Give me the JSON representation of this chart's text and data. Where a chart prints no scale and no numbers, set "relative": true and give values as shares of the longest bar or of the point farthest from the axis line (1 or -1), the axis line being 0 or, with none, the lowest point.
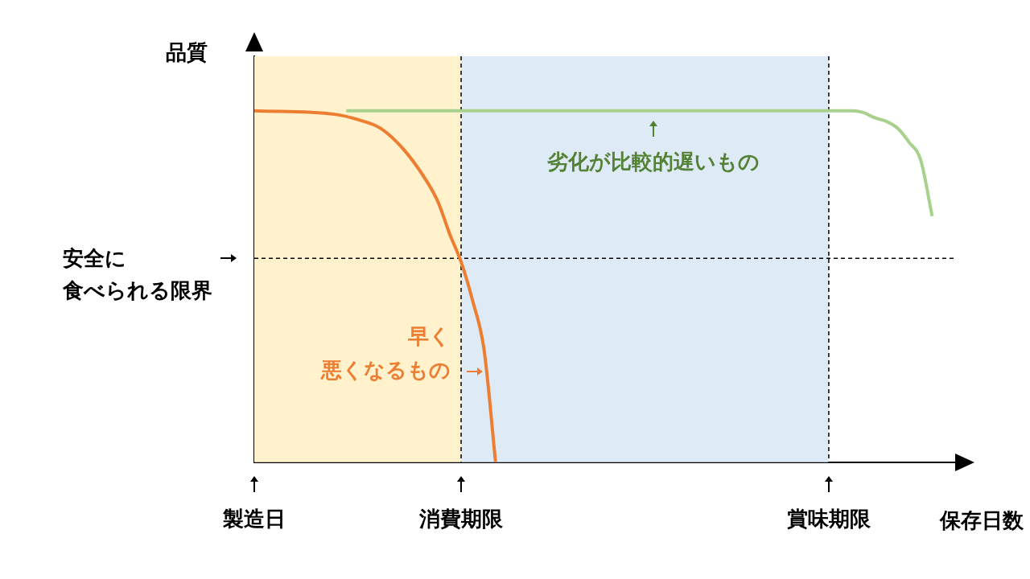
{
  "chart_data": {
    "type": "line",
    "relative": true,
    "xlabel": "保存日数",
    "ylabel": "品質",
    "categories": [
      "製造日",
      null,
      null,
      null,
      null,
      null,
      null,
      null,
      null,
      null,
      null,
      null,
      null,
      null,
      null,
      null,
      null,
      null,
      "消費期限",
      null,
      null,
      null,
      null,
      null,
      null,
      null,
      null,
      null,
      null,
      null,
      null,
      null,
      null,
      null,
      null,
      null,
      null,
      null,
      null,
      null,
      null,
      null,
      null,
      null,
      null,
      null,
      null,
      null,
      null,
      null,
      "賞味期限",
      null,
      null,
      null,
      null,
      null,
      null,
      null,
      null,
      null,
      null,
      null
    ],
    "tick_labels": "x",
    "marker": "none",
    "line_style": "solid",
    "series": [
      {
        "name": "早く悪くなるもの",
        "color": "#ed7d31",
        "values": [
          1,
          null,
          null,
          null,
          null,
          null,
          null,
          0.99,
          null,
          0.975,
          null,
          0.95,
          null,
          0.89,
          null,
          0.8,
          0.74,
          0.65,
          0.57,
          0.46,
          0.32,
          0,
          null,
          null,
          null,
          null,
          null,
          null,
          null,
          null,
          null,
          null,
          null,
          null,
          null,
          null,
          null,
          null,
          null,
          null,
          null,
          null,
          null,
          null,
          null,
          null,
          null,
          null,
          null,
          null,
          null,
          null,
          null,
          null,
          null,
          null,
          null,
          null,
          null,
          null,
          null,
          null
        ]
      },
      {
        "name": "劣化が比較的遅いもの",
        "color": "#a9d18e",
        "values": [
          null,
          null,
          null,
          null,
          null,
          null,
          null,
          null,
          1,
          null,
          null,
          null,
          null,
          null,
          null,
          null,
          null,
          null,
          null,
          null,
          null,
          null,
          null,
          null,
          null,
          null,
          null,
          null,
          null,
          null,
          null,
          null,
          null,
          null,
          null,
          null,
          null,
          null,
          null,
          null,
          null,
          null,
          null,
          null,
          null,
          null,
          null,
          null,
          null,
          null,
          null,
          null,
          1,
          0.995,
          0.98,
          0.97,
          0.95,
          0.91,
          0.86,
          0.7,
          null,
          null
        ]
      }
    ],
    "bands": [
      {
        "axis": "x",
        "from": "製造日",
        "to": "消費期限",
        "color": "#fff2cc"
      },
      {
        "axis": "x",
        "from": "消費期限",
        "to": "賞味期限",
        "color": "#deebf7"
      }
    ],
    "ref_lines": [
      {
        "axis": "x",
        "value": "消費期限",
        "color": "#000000",
        "line_style": "dashed"
      },
      {
        "axis": "x",
        "value": "賞味期限",
        "color": "#000000",
        "line_style": "dashed"
      },
      {
        "axis": "y",
        "value": 0.58,
        "label": "安全に食べられる限界",
        "color": "#000000",
        "line_style": "dashed"
      }
    ]
  }
}
